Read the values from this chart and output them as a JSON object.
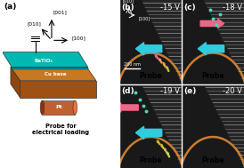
{
  "fig_width": 2.74,
  "fig_height": 1.89,
  "dpi": 100,
  "bg_color": "#ffffff",
  "panel_a": {
    "label": "(a)",
    "cu_base_color": "#c87820",
    "batio3_color": "#00b8b0",
    "pt_color": "#c06030",
    "probe_text": "Probe for\nelectrical loading",
    "pt_label": "Pt",
    "cu_label": "Cu base",
    "bto_label": "BaTiO₃"
  },
  "panels": {
    "b": {
      "label": "(b)",
      "voltage": "-15 V",
      "cyan": true,
      "pink": false,
      "teal_dots": false,
      "small_arrows_pink": true,
      "scalebar": true,
      "axes_inset": true
    },
    "c": {
      "label": "(c)",
      "voltage": "-18 V",
      "cyan": true,
      "pink": true,
      "pink_dir": 1,
      "teal_dots": true,
      "small_arrows_pink": false,
      "scalebar": false,
      "axes_inset": false
    },
    "d": {
      "label": "(d)",
      "voltage": "-19 V",
      "cyan": true,
      "pink": true,
      "pink_dir": -1,
      "teal_dots": true,
      "small_arrows_pink": true,
      "scalebar": false,
      "axes_inset": false
    },
    "e": {
      "label": "(e)",
      "voltage": "-20 V",
      "cyan": false,
      "pink": false,
      "teal_dots": false,
      "small_arrows_pink": false,
      "scalebar": false,
      "axes_inset": false
    }
  },
  "cyan_color": "#30ccdd",
  "pink_color": "#ee6688",
  "teal_color": "#44ddbb",
  "orange_arrow_colors": [
    "#dd8844",
    "#ee9944",
    "#ffaa44",
    "#ffbb55"
  ],
  "white_arrow_colors": [
    "#cccccc",
    "#aaaaaa",
    "#bbbbbb"
  ],
  "label_fontsize": 6.5,
  "voltage_fontsize": 6,
  "probe_fontsize": 5.5
}
